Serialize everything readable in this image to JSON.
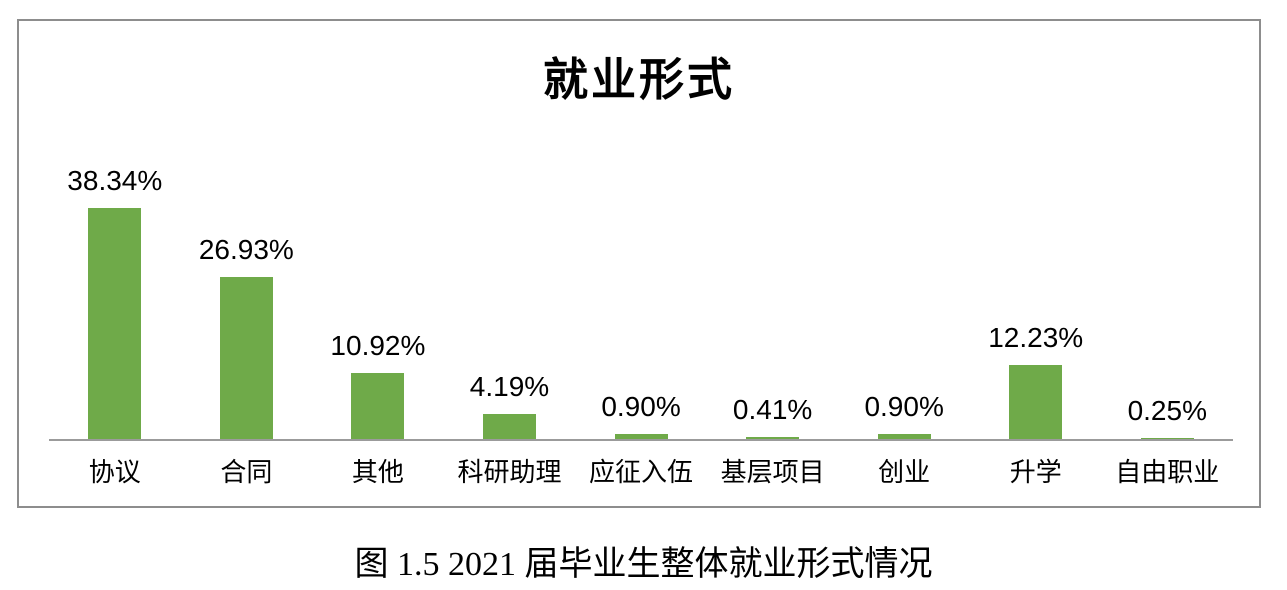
{
  "figure": {
    "title": "就业形式",
    "caption": "图 1.5 2021 届毕业生整体就业形式情况"
  },
  "chart_data": {
    "type": "bar",
    "title": "就业形式",
    "categories": [
      "协议",
      "合同",
      "其他",
      "科研助理",
      "应征入伍",
      "基层项目",
      "创业",
      "升学",
      "自由职业"
    ],
    "values": [
      38.34,
      26.93,
      10.92,
      4.19,
      0.9,
      0.41,
      0.9,
      12.23,
      0.25
    ],
    "value_labels": [
      "38.34%",
      "26.93%",
      "10.92%",
      "4.19%",
      "0.90%",
      "0.41%",
      "0.90%",
      "12.23%",
      "0.25%"
    ],
    "xlabel": "",
    "ylabel": "",
    "legend": "none",
    "grid": false,
    "bar_color": "#6faa49",
    "axis_color": "#9b9b9b",
    "border_color": "#8d8d8d",
    "label_color": "#000000"
  }
}
